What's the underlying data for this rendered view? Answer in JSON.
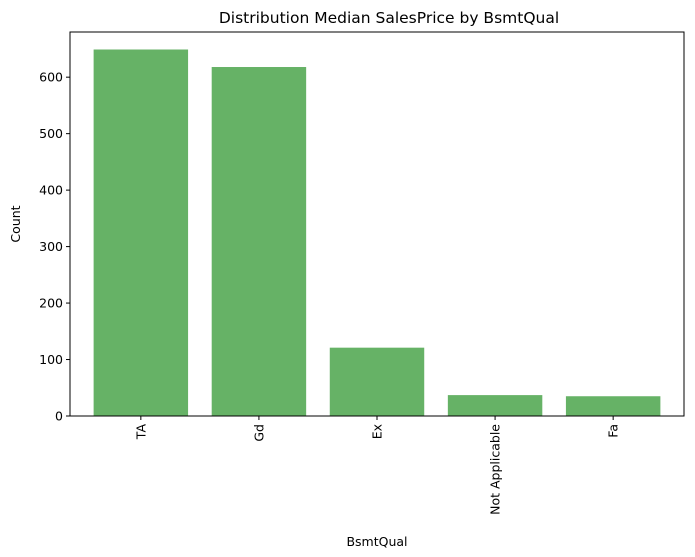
{
  "chart_data": {
    "type": "bar",
    "title": "Distribution Median SalesPrice by BsmtQual",
    "xlabel": "BsmtQual",
    "ylabel": "Count",
    "categories": [
      "TA",
      "Gd",
      "Ex",
      "Not Applicable",
      "Fa"
    ],
    "values": [
      649,
      618,
      121,
      37,
      35
    ],
    "ylim": [
      0,
      680
    ],
    "yticks": [
      0,
      100,
      200,
      300,
      400,
      500,
      600
    ],
    "grid": false,
    "legend": "none",
    "bar_color": "#66b266",
    "xtick_rotation": "vertical"
  }
}
